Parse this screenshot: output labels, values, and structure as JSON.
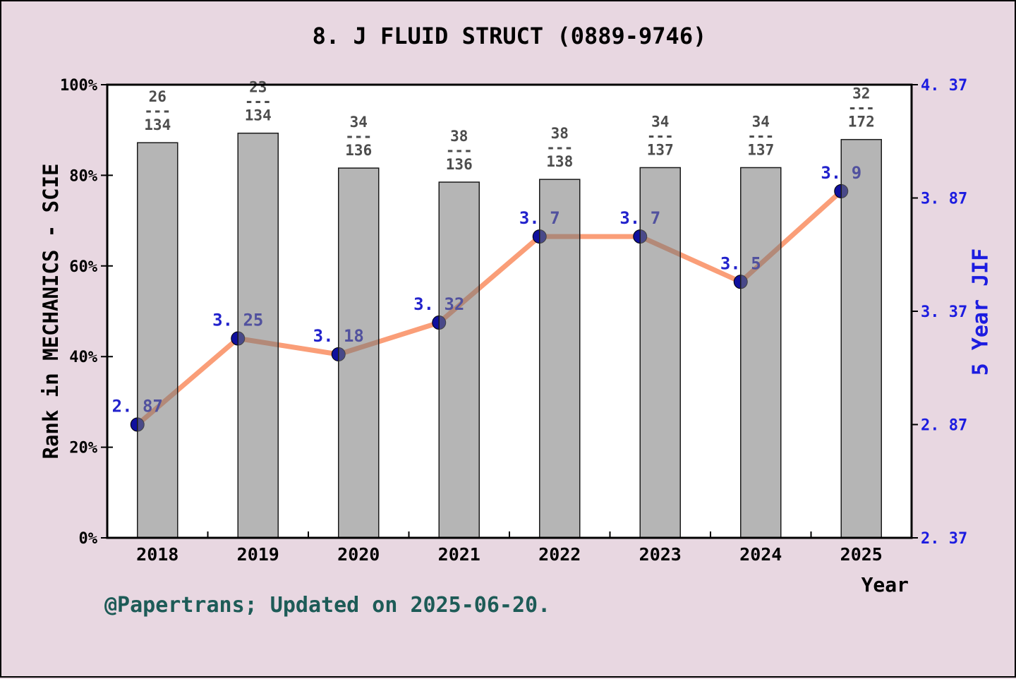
{
  "page": {
    "background": "#e8d7e1",
    "frame_color": "#000000"
  },
  "chart_data": {
    "type": "combo-bar-line",
    "title": "8. J FLUID STRUCT (0889-9746)",
    "footer": "@Papertrans; Updated on 2025-06-20.",
    "x_axis_label": "Year",
    "categories": [
      "2018",
      "2019",
      "2020",
      "2021",
      "2022",
      "2023",
      "2024",
      "2025"
    ],
    "left_axis": {
      "label": "Rank in MECHANICS - SCIE",
      "min": 0,
      "max": 100,
      "ticks": [
        {
          "value": 100,
          "label": "100%"
        },
        {
          "value": 80,
          "label": "80%"
        },
        {
          "value": 60,
          "label": "60%"
        },
        {
          "value": 40,
          "label": "40%"
        },
        {
          "value": 20,
          "label": "20%"
        },
        {
          "value": 0,
          "label": "0%"
        }
      ]
    },
    "right_axis": {
      "label": "5 Year JIF",
      "min": 2.37,
      "max": 4.37,
      "ticks": [
        {
          "value": 4.37,
          "label": "4. 37"
        },
        {
          "value": 3.87,
          "label": "3. 87"
        },
        {
          "value": 3.37,
          "label": "3. 37"
        },
        {
          "value": 2.87,
          "label": "2. 87"
        },
        {
          "value": 2.37,
          "label": "2. 37"
        }
      ]
    },
    "series": [
      {
        "name": "rank-percentile-bars",
        "type": "bar",
        "axis": "left",
        "values_percent": [
          87.2,
          89.3,
          81.6,
          78.5,
          79.1,
          81.7,
          81.7,
          87.9
        ],
        "fractions": [
          {
            "numerator": "26",
            "divider": "---",
            "denominator": "134"
          },
          {
            "numerator": "23",
            "divider": "---",
            "denominator": "134"
          },
          {
            "numerator": "34",
            "divider": "---",
            "denominator": "136"
          },
          {
            "numerator": "38",
            "divider": "---",
            "denominator": "136"
          },
          {
            "numerator": "38",
            "divider": "---",
            "denominator": "138"
          },
          {
            "numerator": "34",
            "divider": "---",
            "denominator": "137"
          },
          {
            "numerator": "34",
            "divider": "---",
            "denominator": "137"
          },
          {
            "numerator": "32",
            "divider": "---",
            "denominator": "172"
          }
        ]
      },
      {
        "name": "5-year-jif-line",
        "type": "line",
        "axis": "right",
        "values": [
          2.87,
          3.25,
          3.18,
          3.32,
          3.7,
          3.7,
          3.5,
          3.9
        ],
        "labels": [
          "2. 87",
          "3. 25",
          "3. 18",
          "3. 32",
          "3. 7",
          "3. 7",
          "3. 5",
          "3. 9"
        ]
      }
    ],
    "colors": {
      "plot_background": "#ffffff",
      "bar_fill": "rgba(120,120,120,0.55)",
      "bar_border": "#1a1a1a",
      "line": "#fa9e78",
      "dot_fill": "#10109e",
      "dot_border": "#000000",
      "point_label": "#2222cc",
      "fraction_text": "#4d4d4d",
      "right_axis_blue": "#1c1ce0",
      "footer_teal": "#1d5b57",
      "axis_black": "#000000"
    },
    "legend": null,
    "grid": false
  }
}
